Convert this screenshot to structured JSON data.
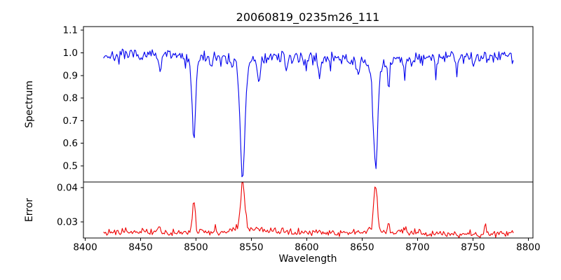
{
  "figure": {
    "background": "#ffffff",
    "frame_color": "#000000"
  },
  "chart_data": {
    "type": "line",
    "title": "20060819_0235m26_111",
    "xlabel": "Wavelength",
    "x_ticks": [
      8400,
      8450,
      8500,
      8550,
      8600,
      8650,
      8700,
      8750,
      8800
    ],
    "xlim": [
      8398.4,
      8804.2
    ],
    "x_data_range": [
      8416.5,
      8787
    ],
    "sampling_step": 1.0,
    "seed": 7,
    "legend": "none",
    "grid": false,
    "panels": [
      {
        "ylabel": "Spectrum",
        "color": "#0000ee",
        "ylim": [
          0.429,
          1.116
        ],
        "yticks": [
          {
            "v": 1.1,
            "label": "1.1"
          },
          {
            "v": 1.0,
            "label": "1.0"
          },
          {
            "v": 0.9,
            "label": "0.9"
          },
          {
            "v": 0.8,
            "label": "0.8"
          },
          {
            "v": 0.7,
            "label": "0.7"
          },
          {
            "v": 0.6,
            "label": "0.6"
          },
          {
            "v": 0.5,
            "label": "0.5"
          }
        ],
        "continuum_level": 0.978,
        "noise_sigma": 0.0135,
        "spike_prob": 0.05,
        "spike_max": 0.045,
        "absorption_lines": [
          {
            "center": 8498.0,
            "depth": 0.33,
            "sigma": 1.5,
            "wing": 0.055,
            "gamma": 3.0,
            "min_value": 0.6
          },
          {
            "center": 8542.1,
            "depth": 0.43,
            "sigma": 2.0,
            "wing": 0.115,
            "gamma": 4.5,
            "min_value": 0.465
          },
          {
            "center": 8662.1,
            "depth": 0.4,
            "sigma": 1.9,
            "wing": 0.105,
            "gamma": 4.0,
            "min_value": 0.48
          },
          {
            "center": 8467.5,
            "depth": 0.09,
            "sigma": 1.2
          },
          {
            "center": 8514.0,
            "depth": 0.06,
            "sigma": 1.0
          },
          {
            "center": 8556.8,
            "depth": 0.1,
            "sigma": 1.2
          },
          {
            "center": 8582.0,
            "depth": 0.045,
            "sigma": 1.0
          },
          {
            "center": 8611.5,
            "depth": 0.075,
            "sigma": 1.1
          },
          {
            "center": 8646.0,
            "depth": 0.085,
            "sigma": 1.2
          },
          {
            "center": 8674.0,
            "depth": 0.12,
            "sigma": 0.9
          },
          {
            "center": 8688.5,
            "depth": 0.1,
            "sigma": 1.0
          },
          {
            "center": 8717.0,
            "depth": 0.05,
            "sigma": 0.9
          },
          {
            "center": 8735.0,
            "depth": 0.06,
            "sigma": 0.9
          },
          {
            "center": 8751.0,
            "depth": 0.06,
            "sigma": 0.9
          }
        ]
      },
      {
        "ylabel": "Error",
        "color": "#ee0000",
        "ylim": [
          0.0253,
          0.0416
        ],
        "yticks": [
          {
            "v": 0.04,
            "label": "0.04"
          },
          {
            "v": 0.03,
            "label": "0.03"
          }
        ],
        "baseline_level": 0.0268,
        "noise_sigma": 0.00055,
        "peaks": [
          {
            "center": 8498.0,
            "height": 0.0085,
            "sigma": 1.4,
            "max_value": 0.036
          },
          {
            "center": 8542.1,
            "height": 0.0128,
            "sigma": 1.7,
            "wing": 0.0018,
            "gamma": 5.0,
            "max_value": 0.0413
          },
          {
            "center": 8662.1,
            "height": 0.0128,
            "sigma": 1.5,
            "wing": 0.0016,
            "gamma": 5.0,
            "max_value": 0.0412
          },
          {
            "center": 8466.0,
            "height": 0.0018,
            "sigma": 1.2
          },
          {
            "center": 8556.8,
            "height": 0.0012,
            "sigma": 1.2
          },
          {
            "center": 8611.0,
            "height": 0.0008,
            "sigma": 1.2
          },
          {
            "center": 8674.0,
            "height": 0.0032,
            "sigma": 0.9
          },
          {
            "center": 8688.5,
            "height": 0.0015,
            "sigma": 1.0
          },
          {
            "center": 8761.0,
            "height": 0.0026,
            "sigma": 1.0
          }
        ]
      }
    ]
  }
}
